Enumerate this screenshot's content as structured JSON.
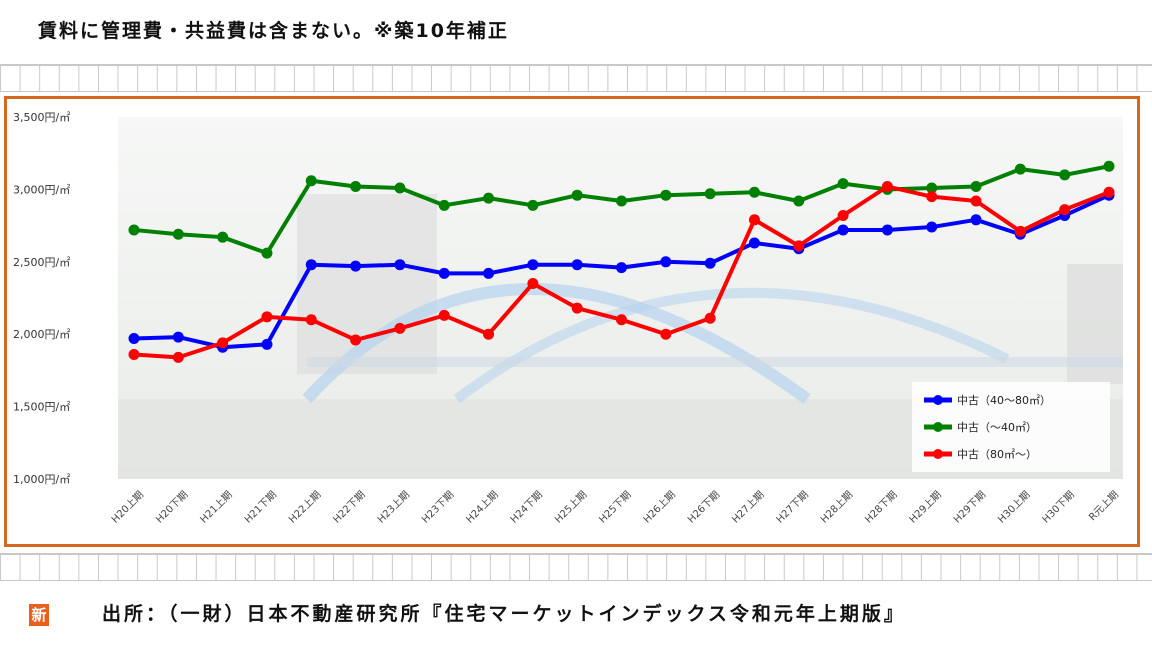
{
  "header_caption": "賃料に管理費・共益費は含まない。※築10年補正",
  "source_caption": "出所：（一財）日本不動産研究所『住宅マーケットインデックス令和元年上期版』",
  "badge": "新",
  "chart_data": {
    "type": "line",
    "categories": [
      "H20上期",
      "H20下期",
      "H21上期",
      "H21下期",
      "H22上期",
      "H22下期",
      "H23上期",
      "H23下期",
      "H24上期",
      "H24下期",
      "H25上期",
      "H25下期",
      "H26上期",
      "H26下期",
      "H27上期",
      "H27下期",
      "H28上期",
      "H28下期",
      "H29上期",
      "H29下期",
      "H30上期",
      "H30下期",
      "R元上期"
    ],
    "ytick_labels": [
      "3,500円/㎡",
      "3,000円/㎡",
      "2,500円/㎡",
      "2,000円/㎡",
      "1,500円/㎡",
      "1,000円/㎡"
    ],
    "ylim": [
      1000,
      3500
    ],
    "grid": false,
    "legend_position": "bottom-right",
    "series": [
      {
        "name": "中古（40～80㎡）",
        "color": "#0000ff",
        "values": [
          1970,
          1980,
          1910,
          1930,
          2480,
          2470,
          2480,
          2420,
          2420,
          2480,
          2480,
          2460,
          2500,
          2490,
          2630,
          2590,
          2720,
          2720,
          2740,
          2790,
          2690,
          2820,
          2960
        ]
      },
      {
        "name": "中古（～40㎡）",
        "color": "#008000",
        "values": [
          2720,
          2690,
          2670,
          2560,
          3060,
          3020,
          3010,
          2890,
          2940,
          2890,
          2960,
          2920,
          2960,
          2970,
          2980,
          2920,
          3040,
          3000,
          3010,
          3020,
          3140,
          3100,
          3160
        ]
      },
      {
        "name": "中古（80㎡～）",
        "color": "#ff0000",
        "values": [
          1860,
          1840,
          1940,
          2120,
          2100,
          1960,
          2040,
          2130,
          2000,
          2350,
          2180,
          2100,
          2000,
          2110,
          2790,
          2610,
          2820,
          3020,
          2950,
          2920,
          2710,
          2860,
          2980
        ]
      }
    ]
  }
}
